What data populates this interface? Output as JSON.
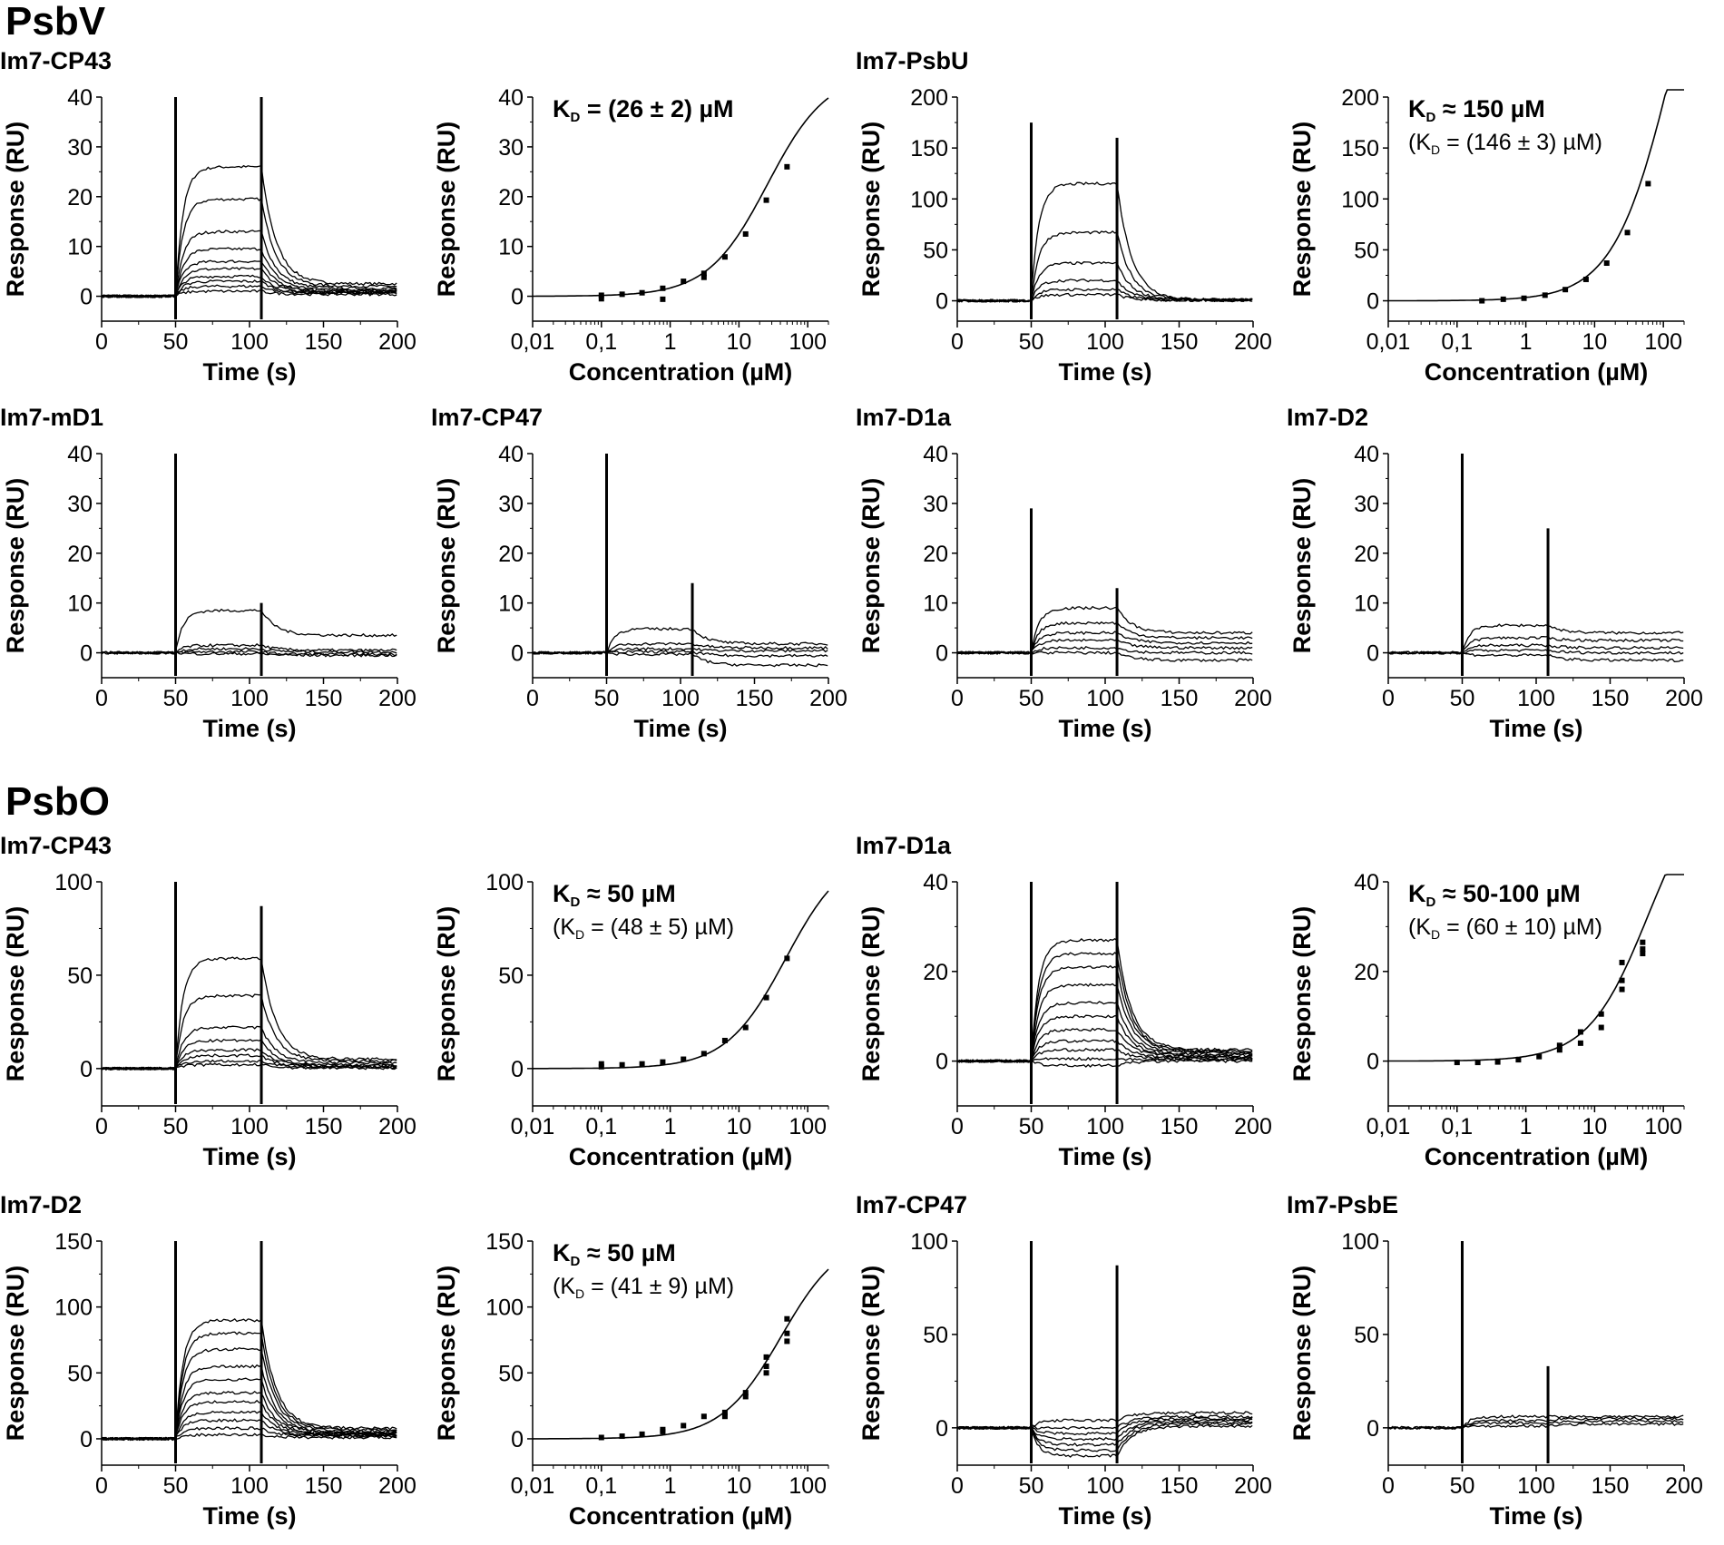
{
  "sections": [
    {
      "key": "psbv",
      "label": "PsbV"
    },
    {
      "key": "psbo",
      "label": "PsbO"
    }
  ],
  "labels": {
    "response": "Response (RU)",
    "time": "Time (s)",
    "concentration": "Concentration (µM)"
  },
  "chart_data": [
    {
      "id": "psbv-cp43-sensorgram",
      "section": "PsbV",
      "panel_title": "Im7-CP43",
      "type": "line",
      "xlabel": "Time (s)",
      "ylabel": "Response (RU)",
      "xlim": [
        0,
        200
      ],
      "ylim": [
        -5,
        40
      ],
      "xticks": [
        "0",
        "50",
        "100",
        "150",
        "200"
      ],
      "yticks": [
        "0",
        "10",
        "20",
        "30",
        "40"
      ],
      "injection_start": 50,
      "injection_end": 108,
      "spikes": [
        40,
        40
      ],
      "curves": [
        {
          "plateau": 26,
          "off_end": 2.5
        },
        {
          "plateau": 19.5,
          "off_end": 2
        },
        {
          "plateau": 13,
          "off_end": 1.6
        },
        {
          "plateau": 9.5,
          "off_end": 1.3
        },
        {
          "plateau": 7,
          "off_end": 1.1
        },
        {
          "plateau": 5.5,
          "off_end": 1
        },
        {
          "plateau": 4,
          "off_end": 0.8
        },
        {
          "plateau": 3,
          "off_end": 0.7
        },
        {
          "plateau": 2,
          "off_end": 0.6
        },
        {
          "plateau": 1,
          "off_end": 0.4
        }
      ]
    },
    {
      "id": "psbv-cp43-binding",
      "section": "PsbV",
      "panel_title": "",
      "type": "scatter",
      "xlabel": "Concentration (µM)",
      "ylabel": "Response (RU)",
      "xscale": "log",
      "xlim": [
        0.01,
        200
      ],
      "ylim": [
        -5,
        40
      ],
      "xticks": [
        "0,01",
        "0,1",
        "1",
        "10",
        "100"
      ],
      "yticks": [
        "0",
        "10",
        "20",
        "30",
        "40"
      ],
      "kd_main": "(26 ± 2) µM",
      "kd_main_op": "=",
      "kd_sub": "",
      "fit": {
        "kd": 26,
        "rmax": 45
      },
      "points": [
        [
          0.1,
          -0.5
        ],
        [
          0.1,
          0.2
        ],
        [
          0.2,
          0.4
        ],
        [
          0.39,
          0.7
        ],
        [
          0.78,
          -0.6
        ],
        [
          0.78,
          1.6
        ],
        [
          1.56,
          3
        ],
        [
          3.1,
          3.8
        ],
        [
          3.1,
          4.6
        ],
        [
          6.25,
          7.9
        ],
        [
          12.5,
          12.5
        ],
        [
          25,
          19.3
        ],
        [
          50,
          26
        ]
      ]
    },
    {
      "id": "psbv-psbu-sensorgram",
      "section": "PsbV",
      "panel_title": "Im7-PsbU",
      "type": "line",
      "xlabel": "Time (s)",
      "ylabel": "Response (RU)",
      "xlim": [
        0,
        200
      ],
      "ylim": [
        -20,
        200
      ],
      "xticks": [
        "0",
        "50",
        "100",
        "150",
        "200"
      ],
      "yticks": [
        "0",
        "50",
        "100",
        "150",
        "200"
      ],
      "injection_start": 50,
      "injection_end": 108,
      "spikes": [
        175,
        160
      ],
      "curves": [
        {
          "plateau": 115,
          "off_end": 1
        },
        {
          "plateau": 67,
          "off_end": 1
        },
        {
          "plateau": 37,
          "off_end": 1
        },
        {
          "plateau": 20,
          "off_end": 0.8
        },
        {
          "plateau": 11,
          "off_end": 0.5
        },
        {
          "plateau": 6,
          "off_end": 0.3
        }
      ]
    },
    {
      "id": "psbv-psbu-binding",
      "section": "PsbV",
      "panel_title": "",
      "type": "scatter",
      "xlabel": "Concentration (µM)",
      "ylabel": "Response (RU)",
      "xscale": "log",
      "xlim": [
        0.01,
        200
      ],
      "ylim": [
        -20,
        200
      ],
      "xticks": [
        "0,01",
        "0,1",
        "1",
        "10",
        "100"
      ],
      "yticks": [
        "0",
        "50",
        "100",
        "150",
        "200"
      ],
      "kd_main": "150 µM",
      "kd_main_op": "≈",
      "kd_sub": "(146 ± 3) µM",
      "fit": {
        "kd": 146,
        "rmax": 480
      },
      "points": [
        [
          0.23,
          0
        ],
        [
          0.47,
          1.5
        ],
        [
          0.94,
          2.5
        ],
        [
          1.9,
          5.5
        ],
        [
          3.75,
          11
        ],
        [
          7.5,
          21
        ],
        [
          15,
          37
        ],
        [
          30,
          67
        ],
        [
          60,
          115
        ]
      ]
    },
    {
      "id": "psbv-md1-sensorgram",
      "section": "PsbV",
      "panel_title": "Im7-mD1",
      "type": "line",
      "xlabel": "Time (s)",
      "ylabel": "Response (RU)",
      "xlim": [
        0,
        200
      ],
      "ylim": [
        -5,
        40
      ],
      "xticks": [
        "0",
        "50",
        "100",
        "150",
        "200"
      ],
      "yticks": [
        "0",
        "10",
        "20",
        "30",
        "40"
      ],
      "injection_start": 50,
      "injection_end": 108,
      "spikes": [
        40,
        10
      ],
      "curves": [
        {
          "plateau": 8.5,
          "off_end": 3.5
        },
        {
          "plateau": 1.5,
          "off_end": 0.5
        },
        {
          "plateau": 0.8,
          "off_end": 0.2
        },
        {
          "plateau": 0.2,
          "off_end": -0.3
        },
        {
          "plateau": -0.2,
          "off_end": -0.5
        }
      ]
    },
    {
      "id": "psbv-cp47-sensorgram",
      "section": "PsbV",
      "panel_title": "Im7-CP47",
      "type": "line",
      "xlabel": "Time (s)",
      "ylabel": "Response (RU)",
      "xlim": [
        0,
        200
      ],
      "ylim": [
        -5,
        40
      ],
      "xticks": [
        "0",
        "50",
        "100",
        "150",
        "200"
      ],
      "yticks": [
        "0",
        "10",
        "20",
        "30",
        "40"
      ],
      "injection_start": 50,
      "injection_end": 108,
      "spikes": [
        40,
        14
      ],
      "curves": [
        {
          "plateau": 4.8,
          "off_end": 1.8
        },
        {
          "plateau": 1.8,
          "off_end": 1
        },
        {
          "plateau": 0.8,
          "off_end": 0.4
        },
        {
          "plateau": 0.2,
          "off_end": -0.6
        },
        {
          "plateau": -0.3,
          "off_end": -2.5
        }
      ]
    },
    {
      "id": "psbv-d1a-sensorgram",
      "section": "PsbV",
      "panel_title": "Im7-D1a",
      "type": "line",
      "xlabel": "Time (s)",
      "ylabel": "Response (RU)",
      "xlim": [
        0,
        200
      ],
      "ylim": [
        -5,
        40
      ],
      "xticks": [
        "0",
        "50",
        "100",
        "150",
        "200"
      ],
      "yticks": [
        "0",
        "10",
        "20",
        "30",
        "40"
      ],
      "injection_start": 50,
      "injection_end": 108,
      "spikes": [
        29,
        13
      ],
      "curves": [
        {
          "plateau": 9,
          "off_end": 4
        },
        {
          "plateau": 6,
          "off_end": 3
        },
        {
          "plateau": 4,
          "off_end": 2
        },
        {
          "plateau": 2.5,
          "off_end": 1
        },
        {
          "plateau": 1,
          "off_end": 0
        },
        {
          "plateau": 0,
          "off_end": -1.5
        }
      ]
    },
    {
      "id": "psbv-d2-sensorgram",
      "section": "PsbV",
      "panel_title": "Im7-D2",
      "type": "line",
      "xlabel": "Time (s)",
      "ylabel": "Response (RU)",
      "xlim": [
        0,
        200
      ],
      "ylim": [
        -5,
        40
      ],
      "xticks": [
        "0",
        "50",
        "100",
        "150",
        "200"
      ],
      "yticks": [
        "0",
        "10",
        "20",
        "30",
        "40"
      ],
      "injection_start": 50,
      "injection_end": 108,
      "spikes": [
        40,
        25
      ],
      "curves": [
        {
          "plateau": 5.5,
          "off_end": 4
        },
        {
          "plateau": 3,
          "off_end": 2.5
        },
        {
          "plateau": 1.5,
          "off_end": 1
        },
        {
          "plateau": 0.5,
          "off_end": 0
        },
        {
          "plateau": -0.5,
          "off_end": -1.5
        }
      ]
    },
    {
      "id": "psbo-cp43-sensorgram",
      "section": "PsbO",
      "panel_title": "Im7-CP43",
      "type": "line",
      "xlabel": "Time (s)",
      "ylabel": "Response (RU)",
      "xlim": [
        0,
        200
      ],
      "ylim": [
        -20,
        100
      ],
      "xticks": [
        "0",
        "50",
        "100",
        "150",
        "200"
      ],
      "yticks": [
        "0",
        "50",
        "100"
      ],
      "injection_start": 50,
      "injection_end": 108,
      "spikes": [
        100,
        87
      ],
      "curves": [
        {
          "plateau": 59,
          "off_end": 5
        },
        {
          "plateau": 39,
          "off_end": 4
        },
        {
          "plateau": 22,
          "off_end": 3
        },
        {
          "plateau": 15,
          "off_end": 2
        },
        {
          "plateau": 10,
          "off_end": 1.5
        },
        {
          "plateau": 7,
          "off_end": 1
        },
        {
          "plateau": 4,
          "off_end": 0.6
        },
        {
          "plateau": 2,
          "off_end": 0.3
        }
      ]
    },
    {
      "id": "psbo-cp43-binding",
      "section": "PsbO",
      "panel_title": "",
      "type": "scatter",
      "xlabel": "Concentration (µM)",
      "ylabel": "Response (RU)",
      "xscale": "log",
      "xlim": [
        0.01,
        200
      ],
      "ylim": [
        -20,
        100
      ],
      "xticks": [
        "0,01",
        "0,1",
        "1",
        "10",
        "100"
      ],
      "yticks": [
        "0",
        "50",
        "100"
      ],
      "kd_main": "50 µM",
      "kd_main_op": "≈",
      "kd_sub": "(48 ± 5) µM",
      "fit": {
        "kd": 48,
        "rmax": 118
      },
      "points": [
        [
          0.1,
          1
        ],
        [
          0.1,
          2.5
        ],
        [
          0.2,
          2
        ],
        [
          0.39,
          2.5
        ],
        [
          0.78,
          3.5
        ],
        [
          1.56,
          5
        ],
        [
          3.1,
          8
        ],
        [
          6.25,
          15
        ],
        [
          12.5,
          22
        ],
        [
          25,
          38
        ],
        [
          50,
          59
        ]
      ]
    },
    {
      "id": "psbo-d1a-sensorgram",
      "section": "PsbO",
      "panel_title": "Im7-D1a",
      "type": "line",
      "xlabel": "Time (s)",
      "ylabel": "Response (RU)",
      "xlim": [
        0,
        200
      ],
      "ylim": [
        -10,
        40
      ],
      "xticks": [
        "0",
        "50",
        "100",
        "150",
        "200"
      ],
      "yticks": [
        "0",
        "20",
        "40"
      ],
      "injection_start": 50,
      "injection_end": 108,
      "spikes": [
        40,
        40
      ],
      "curves": [
        {
          "plateau": 27,
          "off_end": 2.5
        },
        {
          "plateau": 24,
          "off_end": 2.2
        },
        {
          "plateau": 21,
          "off_end": 2
        },
        {
          "plateau": 17,
          "off_end": 1.8
        },
        {
          "plateau": 13,
          "off_end": 1.5
        },
        {
          "plateau": 10,
          "off_end": 1.2
        },
        {
          "plateau": 7,
          "off_end": 1
        },
        {
          "plateau": 4.5,
          "off_end": 0.8
        },
        {
          "plateau": 2.5,
          "off_end": 0.5
        },
        {
          "plateau": 0.5,
          "off_end": 0.3
        },
        {
          "plateau": -1,
          "off_end": 0
        }
      ]
    },
    {
      "id": "psbo-d1a-binding",
      "section": "PsbO",
      "panel_title": "",
      "type": "scatter",
      "xlabel": "Concentration (µM)",
      "ylabel": "Response (RU)",
      "xscale": "log",
      "xlim": [
        0.01,
        200
      ],
      "ylim": [
        -10,
        40
      ],
      "xticks": [
        "0,01",
        "0,1",
        "1",
        "10",
        "100"
      ],
      "yticks": [
        "0",
        "20",
        "40"
      ],
      "kd_main": "50-100 µM",
      "kd_main_op": "≈",
      "kd_sub": "(60 ± 10) µM",
      "fit": {
        "kd": 60,
        "rmax": 65
      },
      "points": [
        [
          0.1,
          -0.3
        ],
        [
          0.2,
          -0.3
        ],
        [
          0.39,
          -0.2
        ],
        [
          0.78,
          0.3
        ],
        [
          1.56,
          1
        ],
        [
          3.1,
          2.5
        ],
        [
          3.1,
          3.5
        ],
        [
          6.25,
          4
        ],
        [
          6.25,
          6.5
        ],
        [
          12.5,
          7.5
        ],
        [
          12.5,
          10.5
        ],
        [
          25,
          16
        ],
        [
          25,
          18
        ],
        [
          25,
          22
        ],
        [
          50,
          24
        ],
        [
          50,
          25
        ],
        [
          50,
          26.5
        ]
      ]
    },
    {
      "id": "psbo-d2-sensorgram",
      "section": "PsbO",
      "panel_title": "Im7-D2",
      "type": "line",
      "xlabel": "Time (s)",
      "ylabel": "Response (RU)",
      "xlim": [
        0,
        200
      ],
      "ylim": [
        -20,
        150
      ],
      "xticks": [
        "0",
        "50",
        "100",
        "150",
        "200"
      ],
      "yticks": [
        "0",
        "50",
        "100",
        "150"
      ],
      "injection_start": 50,
      "injection_end": 108,
      "spikes": [
        150,
        150
      ],
      "curves": [
        {
          "plateau": 90,
          "off_end": 8
        },
        {
          "plateau": 80,
          "off_end": 7
        },
        {
          "plateau": 68,
          "off_end": 6
        },
        {
          "plateau": 55,
          "off_end": 5
        },
        {
          "plateau": 45,
          "off_end": 4.5
        },
        {
          "plateau": 35,
          "off_end": 4
        },
        {
          "plateau": 28,
          "off_end": 3.5
        },
        {
          "plateau": 20,
          "off_end": 3
        },
        {
          "plateau": 14,
          "off_end": 2.5
        },
        {
          "plateau": 8,
          "off_end": 2
        },
        {
          "plateau": 3,
          "off_end": 1
        }
      ]
    },
    {
      "id": "psbo-d2-binding",
      "section": "PsbO",
      "panel_title": "",
      "type": "scatter",
      "xlabel": "Concentration (µM)",
      "ylabel": "Response (RU)",
      "xscale": "log",
      "xlim": [
        0.01,
        200
      ],
      "ylim": [
        -20,
        150
      ],
      "xticks": [
        "0,01",
        "0,1",
        "1",
        "10",
        "100"
      ],
      "yticks": [
        "0",
        "50",
        "100",
        "150"
      ],
      "kd_main": "50 µM",
      "kd_main_op": "≈",
      "kd_sub": "(41 ± 9) µM",
      "fit": {
        "kd": 41,
        "rmax": 155
      },
      "points": [
        [
          0.1,
          1
        ],
        [
          0.2,
          2
        ],
        [
          0.39,
          3.5
        ],
        [
          0.78,
          5.5
        ],
        [
          0.78,
          7
        ],
        [
          1.56,
          10
        ],
        [
          3.1,
          17
        ],
        [
          6.25,
          17
        ],
        [
          6.25,
          20
        ],
        [
          12.5,
          32
        ],
        [
          12.5,
          35
        ],
        [
          25,
          50
        ],
        [
          25,
          55
        ],
        [
          25,
          62
        ],
        [
          50,
          74
        ],
        [
          50,
          80
        ],
        [
          50,
          91
        ]
      ]
    },
    {
      "id": "psbo-cp47-sensorgram",
      "section": "PsbO",
      "panel_title": "Im7-CP47",
      "type": "line",
      "xlabel": "Time (s)",
      "ylabel": "Response (RU)",
      "xlim": [
        0,
        200
      ],
      "ylim": [
        -20,
        100
      ],
      "xticks": [
        "0",
        "50",
        "100",
        "150",
        "200"
      ],
      "yticks": [
        "0",
        "50",
        "100"
      ],
      "injection_start": 50,
      "injection_end": 108,
      "spikes": [
        100,
        87
      ],
      "curves": [
        {
          "plateau": 4,
          "off_end": 8
        },
        {
          "plateau": 0,
          "off_end": 6
        },
        {
          "plateau": -3,
          "off_end": 5
        },
        {
          "plateau": -6,
          "off_end": 4
        },
        {
          "plateau": -9,
          "off_end": 3
        },
        {
          "plateau": -12,
          "off_end": 2
        },
        {
          "plateau": -15,
          "off_end": 1
        }
      ]
    },
    {
      "id": "psbo-psbe-sensorgram",
      "section": "PsbO",
      "panel_title": "Im7-PsbE",
      "type": "line",
      "xlabel": "Time (s)",
      "ylabel": "Response (RU)",
      "xlim": [
        0,
        200
      ],
      "ylim": [
        -20,
        100
      ],
      "xticks": [
        "0",
        "50",
        "100",
        "150",
        "200"
      ],
      "yticks": [
        "0",
        "50",
        "100"
      ],
      "injection_start": 50,
      "injection_end": 108,
      "spikes": [
        100,
        33
      ],
      "curves": [
        {
          "plateau": 6,
          "off_end": 6
        },
        {
          "plateau": 4,
          "off_end": 5
        },
        {
          "plateau": 2.5,
          "off_end": 3.5
        },
        {
          "plateau": 1,
          "off_end": 2
        }
      ]
    }
  ]
}
